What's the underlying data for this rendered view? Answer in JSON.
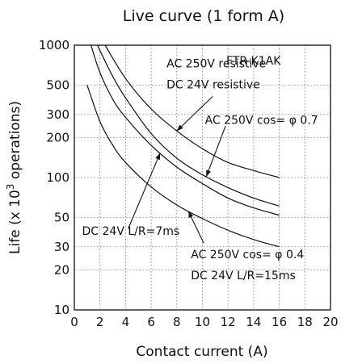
{
  "chart_data": {
    "type": "line",
    "title": "Live curve (1 form A)",
    "subtitle": "FTR-K1AK",
    "xlabel": "Contact current (A)",
    "ylabel_prefix": "Life (x 10",
    "ylabel_exp": "3",
    "ylabel_suffix": " operations)",
    "xlim": [
      0,
      20
    ],
    "ylim": [
      10,
      1000
    ],
    "yscale": "log",
    "grid": true,
    "x_ticks": [
      0,
      2,
      4,
      6,
      8,
      10,
      12,
      14,
      16,
      18,
      20
    ],
    "y_ticks": [
      10,
      20,
      30,
      50,
      100,
      200,
      300,
      500,
      1000
    ],
    "series": [
      {
        "name": "AC 250V resistive / DC 24V resistive",
        "x": [
          2.4,
          4,
          6,
          8,
          10,
          12,
          14,
          16
        ],
        "y": [
          1000,
          560,
          330,
          225,
          165,
          130,
          113,
          100
        ]
      },
      {
        "name": "AC 250V cos= φ 0.7",
        "x": [
          1.8,
          3,
          4,
          6,
          8,
          10,
          12,
          14,
          16
        ],
        "y": [
          1000,
          580,
          400,
          215,
          140,
          105,
          84,
          70,
          61
        ]
      },
      {
        "name": "DC 24V L/R=7ms",
        "x": [
          1.3,
          2,
          3,
          4,
          6,
          8,
          10,
          12,
          14,
          16
        ],
        "y": [
          1000,
          620,
          390,
          285,
          175,
          120,
          90,
          70,
          59,
          52
        ]
      },
      {
        "name": "AC 250V cos= φ 0.4 / DC 24V L/R=15ms",
        "x": [
          1,
          2,
          3,
          4,
          6,
          8,
          10,
          12,
          14,
          16
        ],
        "y": [
          500,
          265,
          175,
          130,
          85,
          62,
          49,
          40,
          34,
          30
        ]
      }
    ],
    "annotations": [
      {
        "lines": [
          "AC 250V resistive",
          "DC 24V resistive"
        ],
        "series": 0
      },
      {
        "lines": [
          "AC 250V cos= φ 0.7"
        ],
        "series": 1
      },
      {
        "lines": [
          "DC 24V L/R=7ms"
        ],
        "series": 2
      },
      {
        "lines": [
          "AC 250V cos= φ 0.4",
          "DC 24V L/R=15ms"
        ],
        "series": 3
      }
    ]
  }
}
